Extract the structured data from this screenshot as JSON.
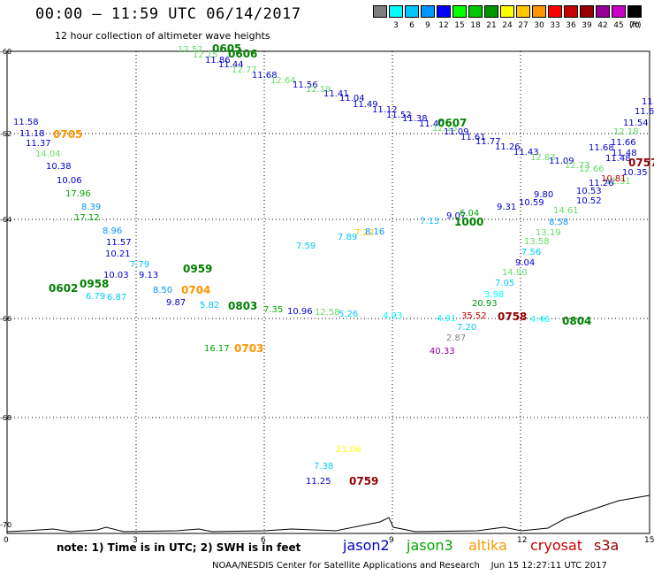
{
  "header": {
    "title": "00:00 – 11:59 UTC 06/14/2017",
    "subtitle": "12 hour collection of altimeter wave heights"
  },
  "legend": {
    "unit": "(ft)",
    "swatches": [
      {
        "label": "",
        "color": "#7f7f7f"
      },
      {
        "label": "3",
        "color": "#00ffff"
      },
      {
        "label": "6",
        "color": "#00c8ff"
      },
      {
        "label": "9",
        "color": "#0096ff"
      },
      {
        "label": "12",
        "color": "#0000ff"
      },
      {
        "label": "15",
        "color": "#00ff00"
      },
      {
        "label": "18",
        "color": "#00c800"
      },
      {
        "label": "21",
        "color": "#009600"
      },
      {
        "label": "24",
        "color": "#ffff00"
      },
      {
        "label": "27",
        "color": "#ffc800"
      },
      {
        "label": "30",
        "color": "#ff9600"
      },
      {
        "label": "33",
        "color": "#ff0000"
      },
      {
        "label": "36",
        "color": "#c80000"
      },
      {
        "label": "39",
        "color": "#960000"
      },
      {
        "label": "42",
        "color": "#960096"
      },
      {
        "label": "45",
        "color": "#c800c8"
      },
      {
        "label": "70",
        "color": "#000000"
      }
    ]
  },
  "axes": {
    "x_ticks": [
      "0",
      "3",
      "6",
      "9",
      "12",
      "15"
    ],
    "y_ticks": [
      "-60",
      "-62",
      "-64",
      "-66",
      "-68",
      "-70"
    ]
  },
  "readings": [
    {
      "v": "12.52",
      "c": "#66dd66"
    },
    {
      "v": "12.15",
      "c": "#66dd66"
    },
    {
      "v": "11.86",
      "c": "#0000cc"
    },
    {
      "v": "11.44",
      "c": "#0000cc"
    },
    {
      "v": "12.77",
      "c": "#66dd66"
    },
    {
      "v": "11.68",
      "c": "#0000cc"
    },
    {
      "v": "12.64",
      "c": "#66dd66"
    },
    {
      "v": "11.56",
      "c": "#0000cc"
    },
    {
      "v": "12.19",
      "c": "#66dd66"
    },
    {
      "v": "11.41",
      "c": "#0000cc"
    },
    {
      "v": "11.04",
      "c": "#0000cc"
    },
    {
      "v": "11.49",
      "c": "#0000cc"
    },
    {
      "v": "11.12",
      "c": "#0000cc"
    },
    {
      "v": "11.52",
      "c": "#0000cc"
    },
    {
      "v": "11.38",
      "c": "#0000cc"
    },
    {
      "v": "11.40",
      "c": "#0000cc"
    },
    {
      "v": "12.15",
      "c": "#66dd66"
    },
    {
      "v": "11.09",
      "c": "#0000cc"
    },
    {
      "v": "11.61",
      "c": "#0000cc"
    },
    {
      "v": "11.77",
      "c": "#0000cc"
    },
    {
      "v": "11.26",
      "c": "#0000cc"
    },
    {
      "v": "11.43",
      "c": "#0000cc"
    },
    {
      "v": "12.83",
      "c": "#66dd66"
    },
    {
      "v": "11.09",
      "c": "#0000cc"
    },
    {
      "v": "12.73",
      "c": "#66dd66"
    },
    {
      "v": "12.66",
      "c": "#66dd66"
    },
    {
      "v": "11.48",
      "c": "#0000cc"
    },
    {
      "v": "11.48",
      "c": "#0000cc"
    },
    {
      "v": "11.66",
      "c": "#0000cc"
    },
    {
      "v": "12.18",
      "c": "#66dd66"
    },
    {
      "v": "11.54",
      "c": "#0000cc"
    },
    {
      "v": "11.68",
      "c": "#0000cc"
    },
    {
      "v": "11.52",
      "c": "#0000cc"
    },
    {
      "v": "10.35",
      "c": "#0000cc"
    },
    {
      "v": "11.68",
      "c": "#0000cc"
    },
    {
      "v": "12.31",
      "c": "#66dd66"
    },
    {
      "v": "10.81",
      "c": "#cc0000"
    },
    {
      "v": "11.26",
      "c": "#0000cc"
    },
    {
      "v": "11.58",
      "c": "#0000cc"
    },
    {
      "v": "11.18",
      "c": "#0000cc"
    },
    {
      "v": "11.37",
      "c": "#0000cc"
    },
    {
      "v": "14.04",
      "c": "#66dd66"
    },
    {
      "v": "10.38",
      "c": "#0000cc"
    },
    {
      "v": "10.06",
      "c": "#0000cc"
    },
    {
      "v": "17.96",
      "c": "#00aa00"
    },
    {
      "v": "8.39",
      "c": "#0096ff"
    },
    {
      "v": "17.12",
      "c": "#00aa00"
    },
    {
      "v": "8.96",
      "c": "#0096ff"
    },
    {
      "v": "11.57",
      "c": "#0000cc"
    },
    {
      "v": "10.21",
      "c": "#0000cc"
    },
    {
      "v": "7.79",
      "c": "#00c8ff"
    },
    {
      "v": "9.13",
      "c": "#0000cc"
    },
    {
      "v": "10.03",
      "c": "#0000cc"
    },
    {
      "v": "6.79",
      "c": "#00c8ff"
    },
    {
      "v": "6.87",
      "c": "#00c8ff"
    },
    {
      "v": "8.50",
      "c": "#0096ff"
    },
    {
      "v": "9.87",
      "c": "#0000cc"
    },
    {
      "v": "5.82",
      "c": "#00c8ff"
    },
    {
      "v": "7.35",
      "c": "#00aa00"
    },
    {
      "v": "10.96",
      "c": "#0000cc"
    },
    {
      "v": "12.58",
      "c": "#66dd66"
    },
    {
      "v": "5.26",
      "c": "#00c8ff"
    },
    {
      "v": "4.93",
      "c": "#00ffff"
    },
    {
      "v": "4.91",
      "c": "#00ffff"
    },
    {
      "v": "7.20",
      "c": "#00c8ff"
    },
    {
      "v": "2.87",
      "c": "#7f7f7f"
    },
    {
      "v": "40.33",
      "c": "#960096"
    },
    {
      "v": "35.52",
      "c": "#c80000"
    },
    {
      "v": "20.93",
      "c": "#009600"
    },
    {
      "v": "3.98",
      "c": "#00ffff"
    },
    {
      "v": "7.05",
      "c": "#00c8ff"
    },
    {
      "v": "14.90",
      "c": "#66dd66"
    },
    {
      "v": "9.04",
      "c": "#0000cc"
    },
    {
      "v": "7.56",
      "c": "#00c8ff"
    },
    {
      "v": "13.58",
      "c": "#66dd66"
    },
    {
      "v": "13.19",
      "c": "#66dd66"
    },
    {
      "v": "8.58",
      "c": "#0096ff"
    },
    {
      "v": "14.61",
      "c": "#66dd66"
    },
    {
      "v": "10.52",
      "c": "#0000cc"
    },
    {
      "v": "10.53",
      "c": "#0000cc"
    },
    {
      "v": "9.80",
      "c": "#0000cc"
    },
    {
      "v": "10.59",
      "c": "#0000cc"
    },
    {
      "v": "9.31",
      "c": "#0000cc"
    },
    {
      "v": "9.07",
      "c": "#0000cc"
    },
    {
      "v": "7.89",
      "c": "#00c8ff"
    },
    {
      "v": "7.22",
      "c": "#ffcc00"
    },
    {
      "v": "8.16",
      "c": "#0096ff"
    },
    {
      "v": "4.46",
      "c": "#00ffff"
    },
    {
      "v": "16.17",
      "c": "#00aa00"
    },
    {
      "v": "21.06",
      "c": "#ffff00"
    },
    {
      "v": "7.38",
      "c": "#00c8ff"
    },
    {
      "v": "11.25",
      "c": "#0000cc"
    },
    {
      "v": "6.04",
      "c": "#00aa00"
    },
    {
      "v": "7.13",
      "c": "#00c8ff"
    },
    {
      "v": "7.59",
      "c": "#00c8ff"
    }
  ],
  "time_labels": [
    {
      "t": "0605",
      "c": "#008000"
    },
    {
      "t": "0606",
      "c": "#008000"
    },
    {
      "t": "0607",
      "c": "#008000"
    },
    {
      "t": "0705",
      "c": "#ff9600"
    },
    {
      "t": "0757",
      "c": "#960000"
    },
    {
      "t": "1000",
      "c": "#008000"
    },
    {
      "t": "0602",
      "c": "#008000"
    },
    {
      "t": "0958",
      "c": "#008000"
    },
    {
      "t": "0959",
      "c": "#008000"
    },
    {
      "t": "0704",
      "c": "#ff9600"
    },
    {
      "t": "0803",
      "c": "#008000"
    },
    {
      "t": "0758",
      "c": "#960000"
    },
    {
      "t": "0804",
      "c": "#008000"
    },
    {
      "t": "0703",
      "c": "#ff9600"
    },
    {
      "t": "0759",
      "c": "#960000"
    }
  ],
  "footer": {
    "note": "note: 1) Time is in UTC; 2) SWH is in feet",
    "missions": [
      {
        "name": "jason2",
        "color": "#0000cc"
      },
      {
        "name": "jason3",
        "color": "#00aa00"
      },
      {
        "name": "altika",
        "color": "#ff9600"
      },
      {
        "name": "cryosat",
        "color": "#cc0000"
      },
      {
        "name": "s3a",
        "color": "#960000"
      }
    ],
    "credit": "NOAA/NESDIS Center for Satellite Applications and Research",
    "timestamp": "Jun 15 12:27:11 UTC 2017"
  }
}
